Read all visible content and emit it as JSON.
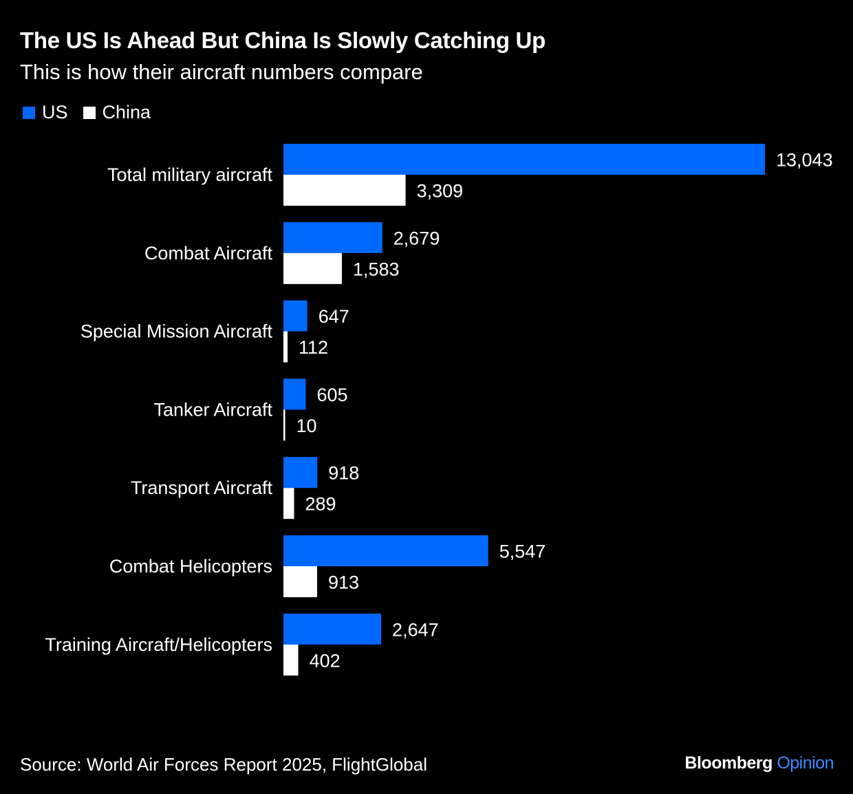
{
  "title": "The US Is Ahead But China Is Slowly Catching Up",
  "subtitle": "This is how their aircraft numbers compare",
  "colors": {
    "background": "#000000",
    "us": "#0068ff",
    "china": "#ffffff",
    "opinion_accent": "#3d8bff"
  },
  "legend": {
    "us_label": "US",
    "china_label": "China"
  },
  "chart_data": {
    "type": "bar",
    "orientation": "horizontal",
    "categories": [
      "Total military aircraft",
      "Combat Aircraft",
      "Special Mission Aircraft",
      "Tanker Aircraft",
      "Transport Aircraft",
      "Combat Helicopters",
      "Training Aircraft/Helicopters"
    ],
    "series": [
      {
        "name": "US",
        "values": [
          13043,
          2679,
          647,
          605,
          918,
          5547,
          2647
        ],
        "labels": [
          "13,043",
          "2,679",
          "647",
          "605",
          "918",
          "5,547",
          "2,647"
        ]
      },
      {
        "name": "China",
        "values": [
          3309,
          1583,
          112,
          10,
          289,
          913,
          402
        ],
        "labels": [
          "3,309",
          "1,583",
          "112",
          "10",
          "289",
          "913",
          "402"
        ]
      }
    ],
    "xlim": [
      0,
      13043
    ],
    "grid": false,
    "legend_position": "top-left"
  },
  "source": "Source: World Air Forces Report 2025, FlightGlobal",
  "brand": {
    "name": "Bloomberg",
    "section": "Opinion"
  }
}
